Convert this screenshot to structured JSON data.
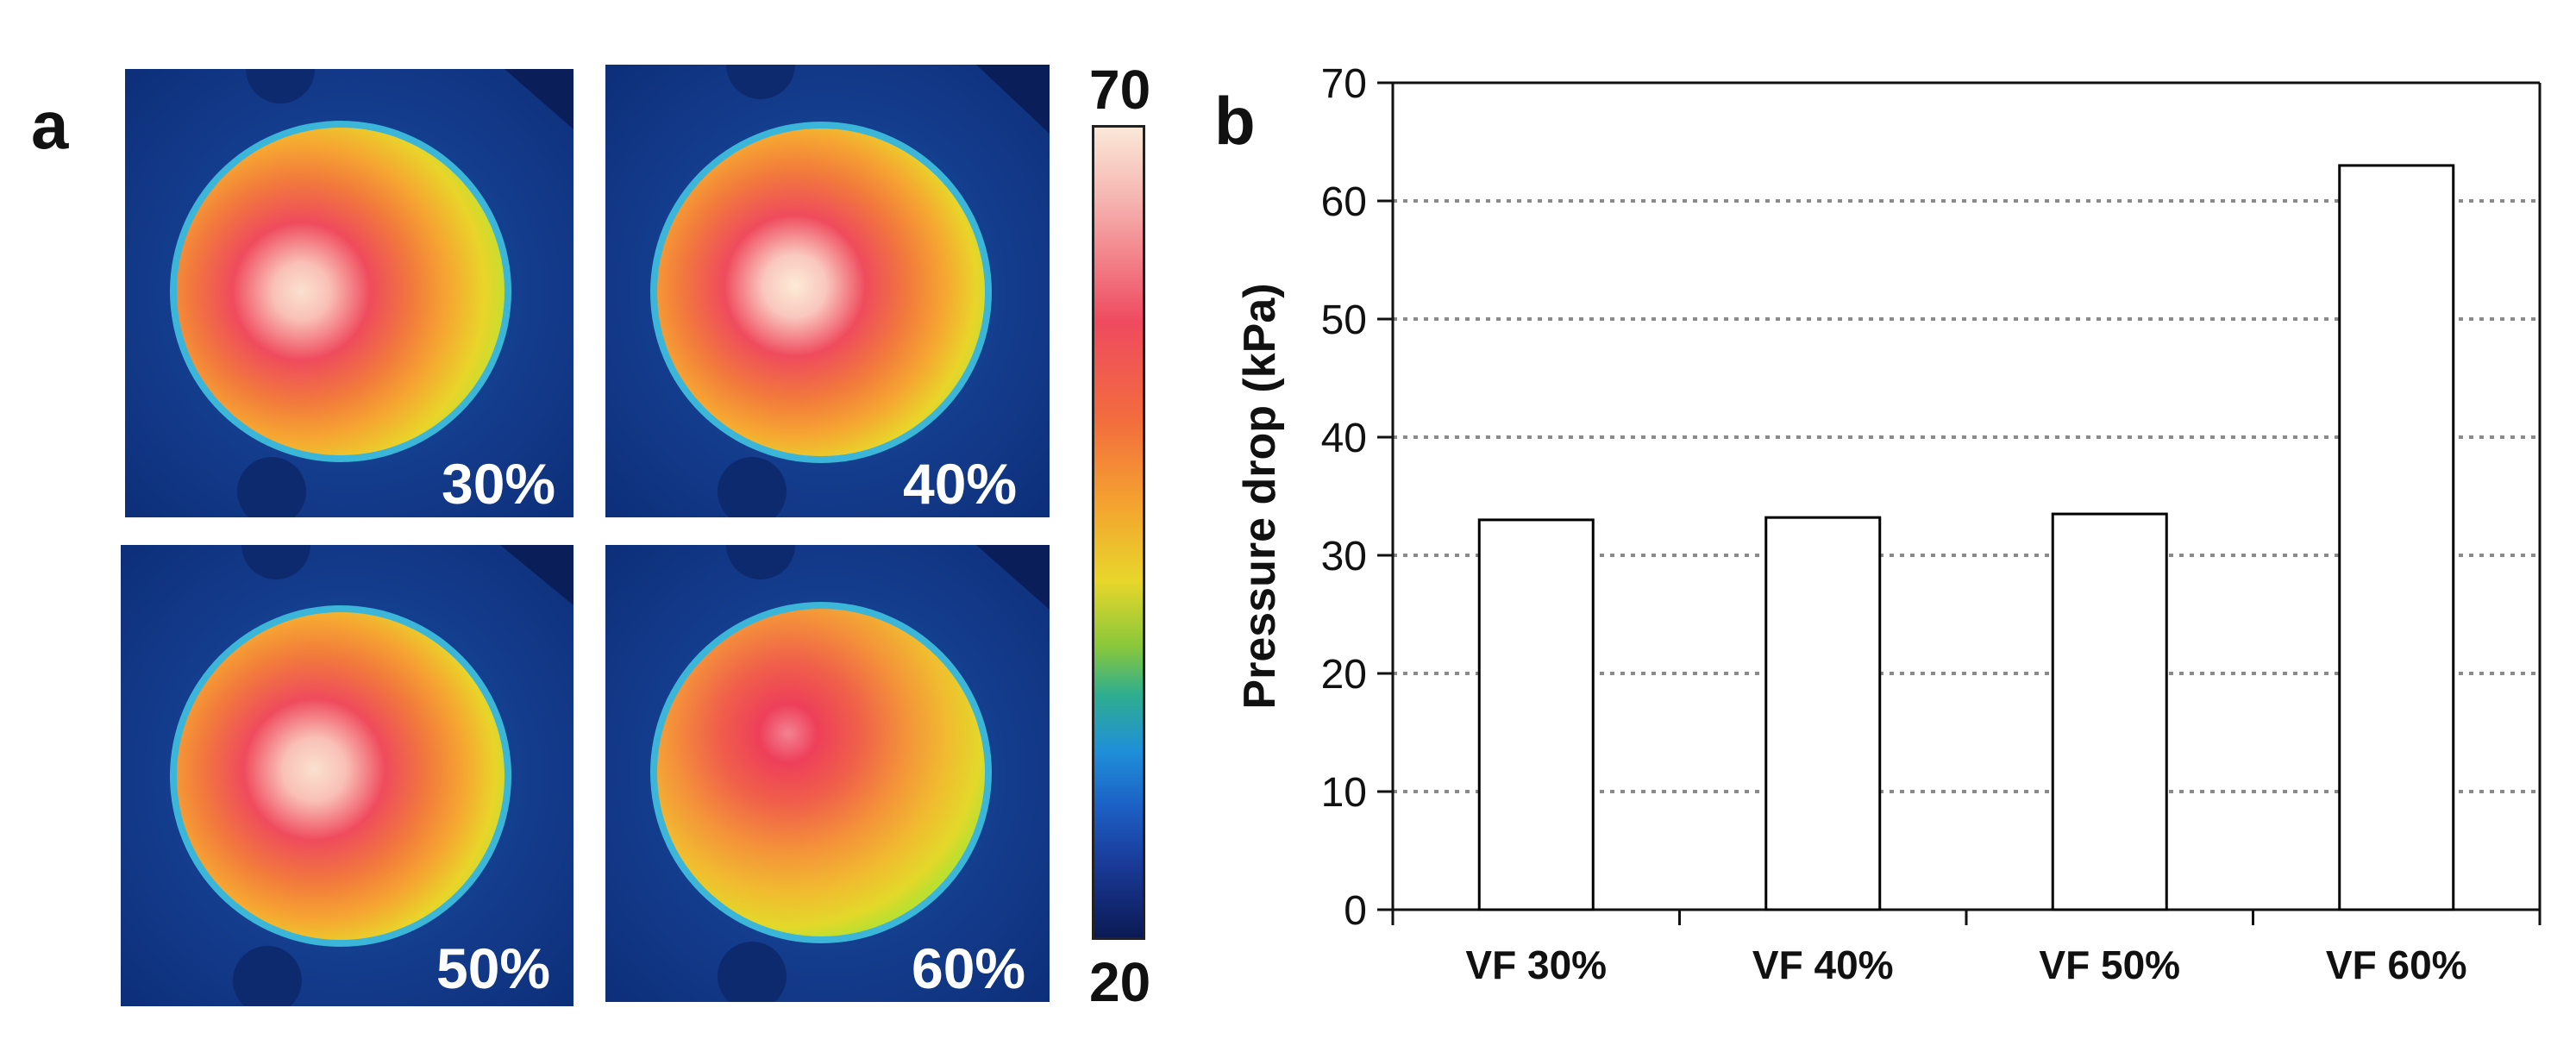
{
  "panel_a": {
    "letter": "a",
    "images": [
      {
        "label": "30%"
      },
      {
        "label": "40%"
      },
      {
        "label": "50%"
      },
      {
        "label": "60%"
      }
    ],
    "colorbar": {
      "max_label": "70",
      "min_label": "20",
      "max": 70,
      "min": 20
    }
  },
  "panel_b": {
    "letter": "b"
  },
  "chart_data": {
    "type": "bar",
    "title": "",
    "categories": [
      "VF 30%",
      "VF 40%",
      "VF 50%",
      "VF 60%"
    ],
    "values": [
      33,
      33.2,
      33.5,
      63
    ],
    "xlabel": "",
    "ylabel": "Pressure drop (kPa)",
    "ylim": [
      0,
      70
    ],
    "yticks": [
      0,
      10,
      20,
      30,
      40,
      50,
      60,
      70
    ],
    "ytick_labels": [
      "0",
      "10",
      "20",
      "30",
      "40",
      "50",
      "60",
      "70"
    ],
    "grid": "horizontal dotted",
    "colors": {
      "bar_fill": "#ffffff",
      "bar_stroke": "#000000"
    }
  }
}
